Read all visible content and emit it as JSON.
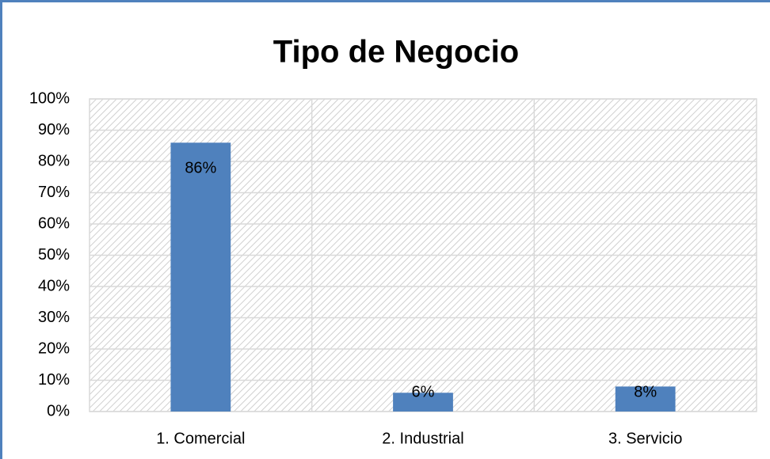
{
  "chart_data": {
    "type": "bar",
    "title": "Tipo de Negocio",
    "categories": [
      "1. Comercial",
      "2. Industrial",
      "3. Servicio"
    ],
    "values": [
      86,
      6,
      8
    ],
    "value_labels": [
      "86%",
      "6%",
      "8%"
    ],
    "color": "#4f81bd",
    "ylim": [
      0,
      100
    ],
    "yticks": [
      {
        "value": 0,
        "label": "0%"
      },
      {
        "value": 10,
        "label": "10%"
      },
      {
        "value": 20,
        "label": "20%"
      },
      {
        "value": 30,
        "label": "30%"
      },
      {
        "value": 40,
        "label": "40%"
      },
      {
        "value": 50,
        "label": "50%"
      },
      {
        "value": 60,
        "label": "60%"
      },
      {
        "value": 70,
        "label": "70%"
      },
      {
        "value": 80,
        "label": "80%"
      },
      {
        "value": 90,
        "label": "90%"
      },
      {
        "value": 100,
        "label": "100%"
      }
    ],
    "grid": true
  }
}
